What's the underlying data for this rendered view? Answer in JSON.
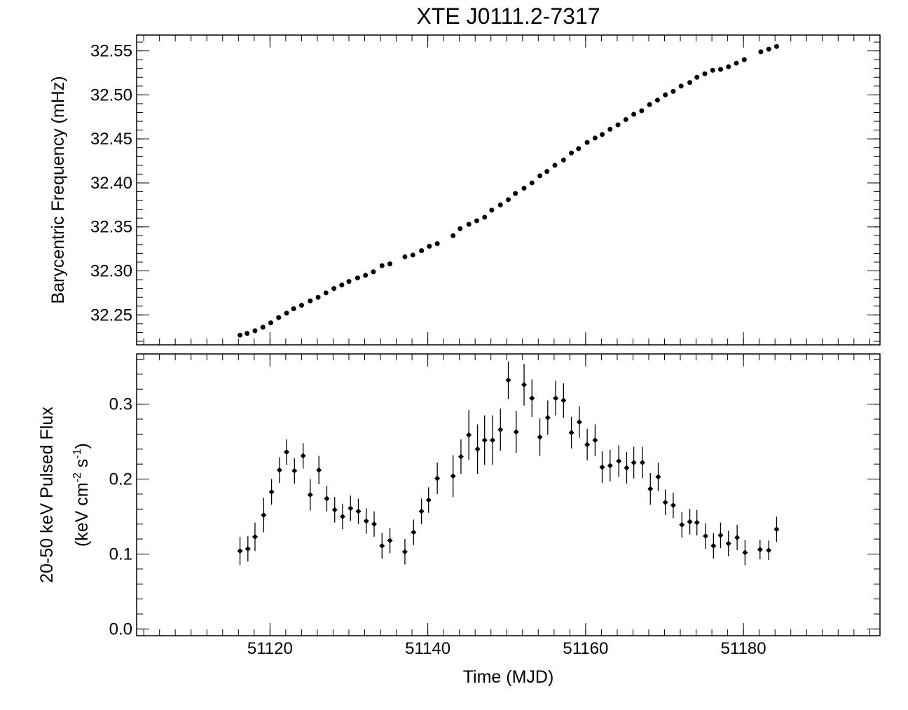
{
  "chart_data": [
    {
      "type": "scatter",
      "title": "XTE J0111.2-7317",
      "ylabel": "Barycentric Frequency (mHz)",
      "color": "#000000",
      "xlim": [
        51103.1,
        51197.3
      ],
      "xticks": [
        51120,
        51140,
        51160,
        51180
      ],
      "ylim": [
        32.216,
        32.568
      ],
      "yticks": [
        {
          "value": 32.25,
          "label": "32.25"
        },
        {
          "value": 32.3,
          "label": "32.30"
        },
        {
          "value": 32.35,
          "label": "32.35"
        },
        {
          "value": 32.4,
          "label": "32.40"
        },
        {
          "value": 32.45,
          "label": "32.45"
        },
        {
          "value": 32.5,
          "label": "32.50"
        },
        {
          "value": 32.55,
          "label": "32.55"
        }
      ],
      "x": [
        51116.2,
        51117.1,
        51118.1,
        51119.1,
        51120.1,
        51121.1,
        51122.1,
        51123.0,
        51124.0,
        51125.1,
        51126.1,
        51127.1,
        51128.1,
        51129.1,
        51130.0,
        51131.1,
        51132.1,
        51133.1,
        51134.2,
        51135.2,
        51137.1,
        51138.1,
        51139.2,
        51140.2,
        51141.2,
        51143.2,
        51144.1,
        51145.2,
        51146.2,
        51147.2,
        51148.1,
        51149.2,
        51150.2,
        51151.1,
        51152.2,
        51153.2,
        51154.2,
        51155.1,
        51156.1,
        51157.2,
        51158.2,
        51159.1,
        51160.2,
        51161.2,
        51162.1,
        51163.1,
        51164.1,
        51165.1,
        51166.1,
        51167.1,
        51168.1,
        51169.1,
        51170.1,
        51171.1,
        51172.1,
        51173.2,
        51174.1,
        51175.1,
        51176.1,
        51177.1,
        51178.1,
        51179.1,
        51180.1,
        51182.2,
        51183.2,
        51184.2
      ],
      "values": [
        32.227,
        32.229,
        32.232,
        32.236,
        32.241,
        32.247,
        32.252,
        32.257,
        32.261,
        32.266,
        32.27,
        32.275,
        32.28,
        32.284,
        32.288,
        32.292,
        32.295,
        32.299,
        32.306,
        32.308,
        32.316,
        32.318,
        32.323,
        32.328,
        32.331,
        32.34,
        32.348,
        32.353,
        32.357,
        32.361,
        32.369,
        32.375,
        32.381,
        32.388,
        32.394,
        32.4,
        32.408,
        32.413,
        32.42,
        32.426,
        32.434,
        32.439,
        32.446,
        32.451,
        32.455,
        32.461,
        32.466,
        32.472,
        32.478,
        32.482,
        32.489,
        32.494,
        32.5,
        32.504,
        32.51,
        32.514,
        32.52,
        32.524,
        32.528,
        32.529,
        32.532,
        32.536,
        32.54,
        32.549,
        32.552,
        32.555
      ]
    },
    {
      "type": "errorbar",
      "xlabel": "Time (MJD)",
      "ylabel": {
        "line1": "20-50 keV Pulsed Flux",
        "line2": [
          {
            "text": "(keV cm"
          },
          {
            "sup": "-2"
          },
          {
            "text": " s"
          },
          {
            "sup": "-1"
          },
          {
            "text": ")"
          }
        ]
      },
      "color": "#000000",
      "xlim": [
        51103.1,
        51197.3
      ],
      "xticks": [
        51120,
        51140,
        51160,
        51180
      ],
      "ylim": [
        -0.009,
        0.367
      ],
      "yticks": [
        {
          "value": 0,
          "label": "0.0"
        },
        0.1,
        0.2,
        0.3
      ],
      "x": [
        51116.2,
        51117.2,
        51118.1,
        51119.2,
        51120.2,
        51121.2,
        51122.1,
        51123.1,
        51124.2,
        51125.1,
        51126.2,
        51127.2,
        51128.2,
        51129.2,
        51130.2,
        51131.2,
        51132.2,
        51133.2,
        51134.2,
        51135.2,
        51137.1,
        51138.2,
        51139.2,
        51140.1,
        51141.2,
        51143.2,
        51144.2,
        51145.2,
        51146.3,
        51147.2,
        51148.2,
        51149.2,
        51150.2,
        51151.2,
        51152.2,
        51153.2,
        51154.2,
        51155.2,
        51156.2,
        51157.2,
        51158.2,
        51159.2,
        51160.2,
        51161.2,
        51162.1,
        51163.1,
        51164.2,
        51165.2,
        51166.1,
        51167.2,
        51168.2,
        51169.2,
        51170.1,
        51171.1,
        51172.2,
        51173.2,
        51174.1,
        51175.2,
        51176.2,
        51177.1,
        51178.1,
        51179.2,
        51180.2,
        51182.1,
        51183.2,
        51184.2
      ],
      "values": [
        0.104,
        0.107,
        0.123,
        0.152,
        0.183,
        0.212,
        0.236,
        0.211,
        0.231,
        0.179,
        0.212,
        0.174,
        0.159,
        0.15,
        0.161,
        0.157,
        0.144,
        0.14,
        0.111,
        0.118,
        0.103,
        0.129,
        0.157,
        0.172,
        0.201,
        0.204,
        0.23,
        0.259,
        0.24,
        0.252,
        0.252,
        0.266,
        0.332,
        0.263,
        0.326,
        0.308,
        0.256,
        0.282,
        0.308,
        0.305,
        0.262,
        0.276,
        0.246,
        0.252,
        0.216,
        0.218,
        0.224,
        0.215,
        0.222,
        0.222,
        0.187,
        0.203,
        0.169,
        0.165,
        0.139,
        0.143,
        0.142,
        0.124,
        0.111,
        0.125,
        0.114,
        0.122,
        0.102,
        0.106,
        0.105,
        0.133
      ],
      "errors": [
        0.019,
        0.017,
        0.019,
        0.023,
        0.017,
        0.017,
        0.017,
        0.017,
        0.017,
        0.021,
        0.019,
        0.017,
        0.017,
        0.017,
        0.017,
        0.017,
        0.017,
        0.017,
        0.017,
        0.017,
        0.017,
        0.017,
        0.017,
        0.017,
        0.021,
        0.028,
        0.023,
        0.033,
        0.033,
        0.033,
        0.033,
        0.028,
        0.025,
        0.028,
        0.028,
        0.025,
        0.025,
        0.023,
        0.023,
        0.023,
        0.021,
        0.021,
        0.021,
        0.021,
        0.021,
        0.021,
        0.021,
        0.021,
        0.021,
        0.021,
        0.021,
        0.019,
        0.017,
        0.017,
        0.017,
        0.017,
        0.017,
        0.017,
        0.017,
        0.017,
        0.017,
        0.017,
        0.017,
        0.013,
        0.013,
        0.017
      ]
    }
  ]
}
